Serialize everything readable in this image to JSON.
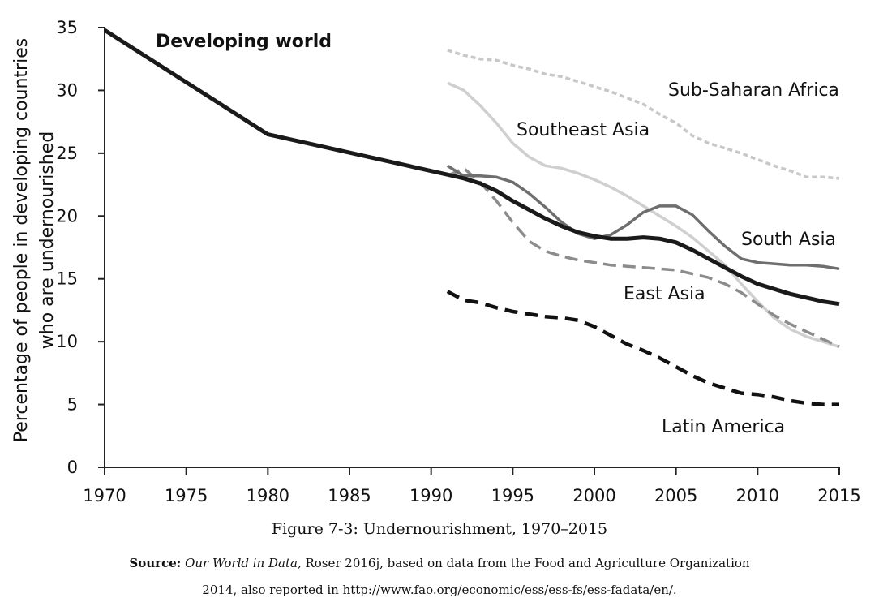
{
  "chart_data": {
    "type": "line",
    "title": "",
    "xlabel": "",
    "ylabel": "Percentage of people in developing countries who are undernourished",
    "ylabel_lines": [
      "Percentage of people in developing countries",
      "who are undernourished"
    ],
    "xlim": [
      1970,
      2015
    ],
    "ylim": [
      0,
      35
    ],
    "x_ticks": [
      1970,
      1975,
      1980,
      1985,
      1990,
      1995,
      2000,
      2005,
      2010,
      2015
    ],
    "y_ticks": [
      0,
      5,
      10,
      15,
      20,
      25,
      30,
      35
    ],
    "grid": false,
    "legend": "none (series labeled directly on chart)",
    "series": [
      {
        "name": "Developing world",
        "color": "#1a1a1a",
        "style": "solid-bold",
        "x": [
          1970,
          1980,
          1991,
          1992,
          1993,
          1994,
          1995,
          1996,
          1997,
          1998,
          1999,
          2000,
          2001,
          2002,
          2003,
          2004,
          2005,
          2006,
          2007,
          2008,
          2009,
          2010,
          2011,
          2012,
          2013,
          2014,
          2015
        ],
        "values": [
          34.8,
          26.5,
          23.3,
          23.0,
          22.6,
          22.0,
          21.2,
          20.5,
          19.8,
          19.2,
          18.7,
          18.4,
          18.2,
          18.2,
          18.3,
          18.2,
          17.9,
          17.3,
          16.6,
          15.9,
          15.2,
          14.6,
          14.2,
          13.8,
          13.5,
          13.2,
          13.0
        ]
      },
      {
        "name": "Sub-Saharan Africa",
        "color": "#c8c8c8",
        "style": "dotted",
        "x": [
          1991,
          1992,
          1993,
          1994,
          1995,
          1996,
          1997,
          1998,
          1999,
          2000,
          2001,
          2002,
          2003,
          2004,
          2005,
          2006,
          2007,
          2008,
          2009,
          2010,
          2011,
          2012,
          2013,
          2014,
          2015
        ],
        "values": [
          33.2,
          32.8,
          32.5,
          32.4,
          32.0,
          31.7,
          31.3,
          31.1,
          30.7,
          30.3,
          29.9,
          29.4,
          28.9,
          28.1,
          27.4,
          26.4,
          25.8,
          25.4,
          25.0,
          24.5,
          24.0,
          23.6,
          23.1,
          23.1,
          23.0
        ]
      },
      {
        "name": "Southeast Asia",
        "color": "#cfcfcf",
        "style": "solid",
        "x": [
          1991,
          1992,
          1993,
          1994,
          1995,
          1996,
          1997,
          1998,
          1999,
          2000,
          2001,
          2002,
          2003,
          2004,
          2005,
          2006,
          2007,
          2008,
          2009,
          2010,
          2011,
          2012,
          2013,
          2014,
          2015
        ],
        "values": [
          30.6,
          30.0,
          28.8,
          27.4,
          25.8,
          24.7,
          24.0,
          23.8,
          23.4,
          22.9,
          22.3,
          21.6,
          20.8,
          20.0,
          19.2,
          18.3,
          17.2,
          16.1,
          14.6,
          13.2,
          11.9,
          11.0,
          10.4,
          10.0,
          9.6
        ]
      },
      {
        "name": "South Asia",
        "color": "#6e6e6e",
        "style": "solid",
        "x": [
          1991,
          1992,
          1993,
          1994,
          1995,
          1996,
          1997,
          1998,
          1999,
          2000,
          2001,
          2002,
          2003,
          2004,
          2005,
          2006,
          2007,
          2008,
          2009,
          2010,
          2011,
          2012,
          2013,
          2014,
          2015
        ],
        "values": [
          24.0,
          23.2,
          23.2,
          23.1,
          22.7,
          21.8,
          20.7,
          19.5,
          18.6,
          18.2,
          18.5,
          19.3,
          20.3,
          20.8,
          20.8,
          20.1,
          18.8,
          17.6,
          16.6,
          16.3,
          16.2,
          16.1,
          16.1,
          16.0,
          15.8
        ]
      },
      {
        "name": "East Asia",
        "color": "#8c8c8c",
        "style": "dashed",
        "x": [
          1991,
          1992,
          1993,
          1994,
          1995,
          1996,
          1997,
          1998,
          1999,
          2000,
          2001,
          2002,
          2003,
          2004,
          2005,
          2006,
          2007,
          2008,
          2009,
          2010,
          2011,
          2012,
          2013,
          2014,
          2015
        ],
        "values": [
          23.2,
          23.8,
          22.7,
          21.2,
          19.5,
          18.0,
          17.2,
          16.8,
          16.5,
          16.3,
          16.1,
          16.0,
          15.9,
          15.8,
          15.7,
          15.4,
          15.1,
          14.6,
          13.9,
          13.0,
          12.1,
          11.4,
          10.8,
          10.2,
          9.6
        ]
      },
      {
        "name": "Latin America",
        "color": "#111111",
        "style": "dashed-bold",
        "x": [
          1991,
          1992,
          1993,
          1994,
          1995,
          1996,
          1997,
          1998,
          1999,
          2000,
          2001,
          2002,
          2003,
          2004,
          2005,
          2006,
          2007,
          2008,
          2009,
          2010,
          2011,
          2012,
          2013,
          2014,
          2015
        ],
        "values": [
          14.0,
          13.3,
          13.1,
          12.7,
          12.4,
          12.2,
          12.0,
          11.9,
          11.7,
          11.2,
          10.5,
          9.8,
          9.3,
          8.7,
          8.0,
          7.3,
          6.7,
          6.3,
          5.9,
          5.8,
          5.6,
          5.3,
          5.1,
          5.0,
          5.0
        ]
      }
    ]
  },
  "caption": {
    "figure_title": "Figure 7-3: Undernourishment, 1970–2015",
    "source_label": "Source:",
    "source_italic": "Our World in Data,",
    "source_rest": " Roser 2016j, based on data from the Food and Agriculture Organization",
    "source_line2": "2014, also reported in http://www.fao.org/economic/ess/ess-fs/ess-fadata/en/."
  }
}
